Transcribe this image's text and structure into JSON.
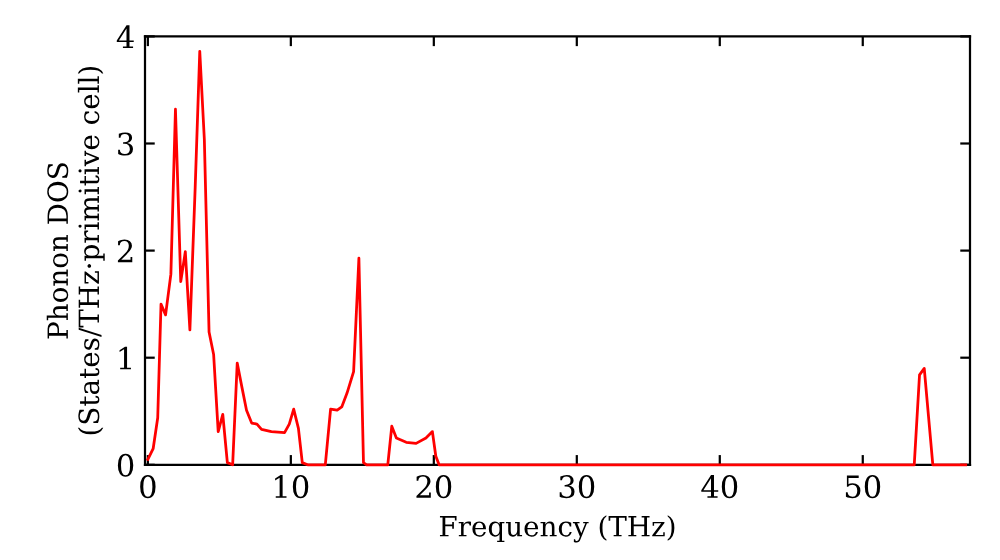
{
  "chart_data": {
    "type": "line",
    "xlabel": "Frequency (THz)",
    "ylabel": "Phonon DOS\n(States/THz·primitive cell)",
    "xlim": [
      -0.2,
      57.5
    ],
    "ylim": [
      0,
      4
    ],
    "xticks": [
      0,
      10,
      20,
      30,
      40,
      50
    ],
    "yticks": [
      0,
      1,
      2,
      3,
      4
    ],
    "grid": false,
    "marker": "none",
    "line_style": "solid",
    "series": [
      {
        "color": "#ff0000",
        "x": [
          0,
          0.37,
          0.69,
          0.92,
          1.24,
          1.61,
          1.93,
          2.3,
          2.62,
          2.94,
          3.31,
          3.63,
          3.95,
          4.28,
          4.6,
          4.92,
          5.24,
          5.56,
          5.93,
          6.25,
          6.57,
          6.9,
          7.26,
          7.63,
          7.95,
          8.64,
          9.56,
          9.89,
          10.2,
          10.53,
          10.8,
          11.17,
          12.41,
          12.78,
          13.24,
          13.56,
          13.93,
          14.39,
          14.76,
          15.08,
          15.3,
          16.78,
          17.06,
          17.38,
          18.07,
          18.76,
          19.45,
          19.9,
          20.14,
          20.37,
          53.6,
          53.97,
          54.3,
          54.6,
          54.9,
          57.2
        ],
        "values": [
          0.05,
          0.15,
          0.44,
          1.5,
          1.4,
          1.78,
          3.32,
          1.71,
          1.99,
          1.26,
          2.59,
          3.86,
          3.04,
          1.24,
          1.03,
          0.31,
          0.47,
          0.02,
          0,
          0.95,
          0.73,
          0.51,
          0.39,
          0.38,
          0.33,
          0.31,
          0.3,
          0.38,
          0.52,
          0.34,
          0.02,
          0,
          0,
          0.52,
          0.51,
          0.54,
          0.67,
          0.87,
          1.93,
          0.02,
          0,
          0,
          0.36,
          0.25,
          0.21,
          0.2,
          0.25,
          0.31,
          0.08,
          0,
          0,
          0.84,
          0.9,
          0.45,
          0,
          0
        ]
      }
    ]
  }
}
